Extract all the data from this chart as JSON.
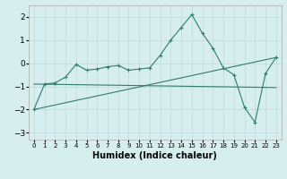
{
  "xlabel": "Humidex (Indice chaleur)",
  "ylabel": "",
  "background_color": "#d6eeee",
  "line_color": "#2e7d6e",
  "xlim": [
    -0.5,
    23.5
  ],
  "ylim": [
    -3.3,
    2.5
  ],
  "yticks": [
    -3,
    -2,
    -1,
    0,
    1,
    2
  ],
  "xticks": [
    0,
    1,
    2,
    3,
    4,
    5,
    6,
    7,
    8,
    9,
    10,
    11,
    12,
    13,
    14,
    15,
    16,
    17,
    18,
    19,
    20,
    21,
    22,
    23
  ],
  "line1_x": [
    0,
    1,
    2,
    3,
    4,
    5,
    6,
    7,
    8,
    9,
    10,
    11,
    12,
    13,
    14,
    15,
    16,
    17,
    18,
    19,
    20,
    21,
    22,
    23
  ],
  "line1_y": [
    -2.0,
    -0.9,
    -0.85,
    -0.6,
    -0.05,
    -0.3,
    -0.25,
    -0.15,
    -0.1,
    -0.3,
    -0.25,
    -0.2,
    0.35,
    1.0,
    1.55,
    2.1,
    1.3,
    0.65,
    -0.2,
    -0.5,
    -1.9,
    -2.55,
    -0.45,
    0.25
  ],
  "line2_x": [
    0,
    23
  ],
  "line2_y": [
    -2.0,
    0.25
  ],
  "line3_x": [
    0,
    23
  ],
  "line3_y": [
    -0.9,
    -1.05
  ],
  "grid_color": "#c0d8d8",
  "tick_fontsize": 6.5,
  "xlabel_fontsize": 7.0
}
